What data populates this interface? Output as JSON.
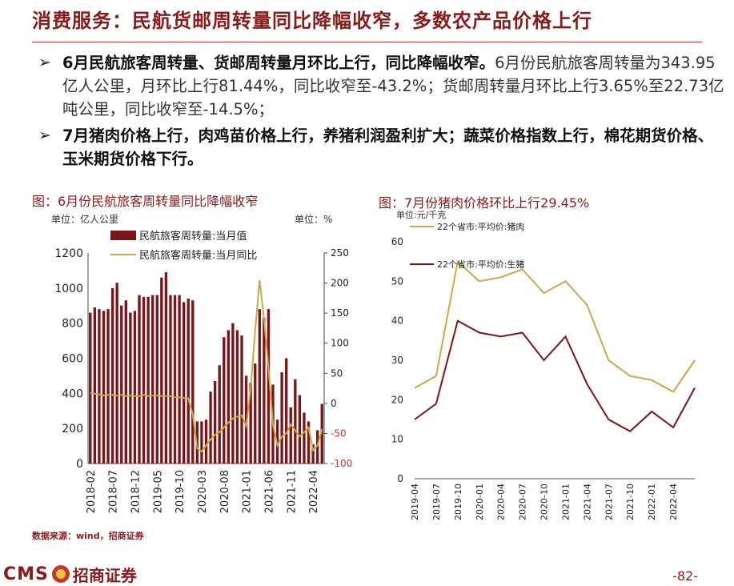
{
  "title": "消费服务：民航货邮周转量同比降幅收窄，多数农产品价格上行",
  "bullets": [
    {
      "bold": "6月民航旅客周转量、货邮周转量月环比上行，同比降幅收窄。",
      "text": "6月份民航旅客周转量为343.95亿人公里，月环比上行81.44%，同比收窄至-43.2%；货邮周转量月环比上行3.65%至22.73亿吨公里，同比收窄至-14.5%；"
    },
    {
      "bold": "7月猪肉价格上行，肉鸡苗价格上行，养猪利润盈利扩大；蔬菜价格指数上行，棉花期货价格、玉米期货价格下行。",
      "text": ""
    }
  ],
  "chart1": {
    "title": "图：6月份民航旅客周转量同比降幅收窄",
    "unit_left": "单位：亿人公里",
    "unit_right": "单位：%",
    "legend_bar": "民航旅客周转量:当月值",
    "legend_line": "民航旅客周转量:当月同比",
    "y_left_ticks": [
      "0",
      "200",
      "400",
      "600",
      "800",
      "1000",
      "1200"
    ],
    "y_right_ticks": [
      "-100",
      "-50",
      "0",
      "50",
      "100",
      "150",
      "200",
      "250"
    ],
    "x_ticks": [
      "2018-02",
      "2018-07",
      "2018-12",
      "2019-05",
      "2019-10",
      "2020-03",
      "2020-08",
      "2021-01",
      "2021-06",
      "2021-11",
      "2022-04"
    ],
    "colors": {
      "bar": "#7b1518",
      "line": "#c9a84c",
      "neg": "#c0392b"
    }
  },
  "chart2": {
    "title": "图：7月份猪肉价格环比上行29.45%",
    "unit": "单位:元/千克",
    "legend_pork": "22个省市:平均价:猪肉",
    "legend_hog": "22个省市:平均价:生猪",
    "y_ticks": [
      "0",
      "10",
      "20",
      "30",
      "40",
      "50",
      "60"
    ],
    "x_ticks": [
      "2019-04",
      "2019-07",
      "2019-10",
      "2020-01",
      "2020-04",
      "2020-07",
      "2020-10",
      "2021-01",
      "2021-04",
      "2021-07",
      "2021-10",
      "2022-01",
      "2022-04"
    ],
    "colors": {
      "pork": "#c9a84c",
      "hog": "#7b1518"
    }
  },
  "chart_data": [
    {
      "type": "bar",
      "title": "图：6月份民航旅客周转量同比降幅收窄",
      "x": [
        "2018-02",
        "2018-03",
        "2018-04",
        "2018-05",
        "2018-06",
        "2018-07",
        "2018-08",
        "2018-09",
        "2018-10",
        "2018-11",
        "2018-12",
        "2019-01",
        "2019-02",
        "2019-03",
        "2019-04",
        "2019-05",
        "2019-06",
        "2019-07",
        "2019-08",
        "2019-09",
        "2019-10",
        "2019-11",
        "2019-12",
        "2020-01",
        "2020-02",
        "2020-03",
        "2020-04",
        "2020-05",
        "2020-06",
        "2020-07",
        "2020-08",
        "2020-09",
        "2020-10",
        "2020-11",
        "2020-12",
        "2021-01",
        "2021-02",
        "2021-03",
        "2021-04",
        "2021-05",
        "2021-06",
        "2021-07",
        "2021-08",
        "2021-09",
        "2021-10",
        "2021-11",
        "2021-12",
        "2022-01",
        "2022-02",
        "2022-03",
        "2022-04",
        "2022-05",
        "2022-06"
      ],
      "series": [
        {
          "name": "民航旅客周转量:当月值",
          "axis": "left",
          "values": [
            860,
            890,
            880,
            870,
            880,
            1000,
            1030,
            900,
            930,
            860,
            870,
            960,
            950,
            950,
            960,
            960,
            1060,
            1090,
            960,
            960,
            960,
            920,
            940,
            930,
            240,
            240,
            250,
            410,
            470,
            560,
            720,
            760,
            800,
            760,
            730,
            500,
            460,
            570,
            880,
            830,
            880,
            450,
            250,
            520,
            600,
            320,
            480,
            390,
            290,
            240,
            110,
            190,
            340
          ]
        },
        {
          "name": "民航旅客周转量:当月同比",
          "axis": "right",
          "values": [
            17,
            16,
            15,
            13,
            14,
            14,
            13,
            14,
            12,
            13,
            12,
            12,
            14,
            12,
            13,
            13,
            12,
            12,
            12,
            10,
            10,
            9,
            8,
            -18,
            -75,
            -80,
            -70,
            -60,
            -52,
            -48,
            -40,
            -32,
            -25,
            -22,
            -20,
            -38,
            25,
            120,
            205,
            140,
            60,
            -35,
            -70,
            -55,
            -50,
            -35,
            -45,
            -55,
            -48,
            -40,
            -78,
            -70,
            -43
          ]
        }
      ],
      "ylim_left": [
        0,
        1200
      ],
      "ylim_right": [
        -100,
        250
      ]
    },
    {
      "type": "line",
      "title": "图：7月份猪肉价格环比上行29.45%",
      "x": [
        "2019-04",
        "2019-07",
        "2019-10",
        "2020-01",
        "2020-04",
        "2020-07",
        "2020-10",
        "2021-01",
        "2021-04",
        "2021-07",
        "2021-10",
        "2022-01",
        "2022-04",
        "2022-07"
      ],
      "series": [
        {
          "name": "22个省市:平均价:猪肉",
          "values": [
            23,
            26,
            55,
            50,
            51,
            53,
            47,
            50,
            44,
            30,
            26,
            25,
            22,
            30
          ]
        },
        {
          "name": "22个省市:平均价:生猪",
          "values": [
            15,
            19,
            40,
            37,
            36,
            37,
            30,
            36,
            24,
            15,
            12,
            17,
            13,
            23
          ]
        }
      ],
      "ylim": [
        0,
        60
      ]
    }
  ],
  "source": "数据来源：wind，招商证券",
  "footer": {
    "brand": "CMS",
    "brand_cn": "招商证券",
    "page": "-82-"
  }
}
